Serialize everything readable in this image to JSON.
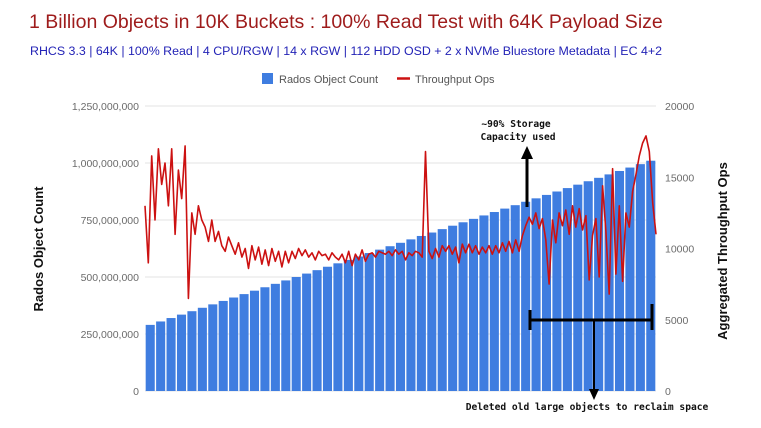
{
  "chart_data": {
    "type": "bar",
    "title": "1 Billion Objects in 10K Buckets : 100% Read Test with 64K Payload Size",
    "subtitle": "RHCS 3.3 | 64K | 100% Read | 4 CPU/RGW | 14 x RGW | 112 HDD OSD + 2 x NVMe Bluestore Metadata | EC 4+2",
    "ylabel": "Rados Object Count",
    "y2label": "Aggregated Throughput Ops",
    "ylim": [
      0,
      1250000000
    ],
    "y2lim": [
      0,
      20000
    ],
    "yticks": [
      "0",
      "250,000,000",
      "500,000,000",
      "750,000,000",
      "1,000,000,000",
      "1,250,000,000"
    ],
    "y2ticks": [
      "0",
      "5000",
      "10000",
      "15000",
      "20000"
    ],
    "legend_position": "top",
    "grid": true,
    "series": [
      {
        "name": "Rados Object Count",
        "axis": "left",
        "kind": "bar",
        "color": "#3f7de0",
        "values": [
          290000000,
          305000000,
          320000000,
          335000000,
          350000000,
          365000000,
          380000000,
          395000000,
          410000000,
          425000000,
          440000000,
          455000000,
          470000000,
          485000000,
          500000000,
          515000000,
          530000000,
          545000000,
          560000000,
          575000000,
          590000000,
          605000000,
          620000000,
          635000000,
          650000000,
          665000000,
          680000000,
          695000000,
          710000000,
          725000000,
          740000000,
          755000000,
          770000000,
          785000000,
          800000000,
          815000000,
          830000000,
          845000000,
          860000000,
          875000000,
          890000000,
          905000000,
          920000000,
          935000000,
          950000000,
          965000000,
          980000000,
          995000000,
          1010000000
        ]
      },
      {
        "name": "Throughput Ops",
        "axis": "right",
        "kind": "line",
        "color": "#cc1111",
        "values": [
          13000,
          9000,
          16500,
          12000,
          17000,
          14500,
          16000,
          13000,
          17000,
          11000,
          15500,
          13500,
          17200,
          6500,
          12500,
          11000,
          13000,
          12000,
          11500,
          10500,
          12000,
          10500,
          11200,
          10200,
          9800,
          10800,
          10200,
          9600,
          10400,
          9400,
          10000,
          8600,
          10200,
          9200,
          10100,
          8900,
          9900,
          8800,
          10000,
          9100,
          9800,
          8700,
          9800,
          9000,
          9800,
          9300,
          10000,
          9500,
          9900,
          9400,
          9700,
          9200,
          9800,
          9500,
          9600,
          9200,
          9700,
          9400,
          9200,
          9600,
          9000,
          9800,
          8800,
          9600,
          9200,
          9900,
          9100,
          9600,
          9700,
          9400,
          9800,
          9700,
          9600,
          9800,
          9500,
          9900,
          9600,
          9800,
          9200,
          9700,
          9500,
          9800,
          9700,
          9400,
          16800,
          9800,
          9300,
          10000,
          9400,
          10200,
          9800,
          10200,
          9600,
          10100,
          9000,
          10300,
          9700,
          10300,
          9700,
          10200,
          9600,
          10100,
          9700,
          10200,
          9600,
          10200,
          9700,
          10400,
          9800,
          10500,
          9700,
          10600,
          9800,
          10900,
          11600,
          12200,
          11700,
          12500,
          11400,
          12100,
          10600,
          7500,
          12000,
          10400,
          12500,
          11600,
          12700,
          11000,
          13000,
          11500,
          12800,
          11300,
          12300,
          7800,
          10900,
          12100,
          8000,
          14400,
          11200,
          6800,
          15600,
          8200,
          13000,
          7700,
          12500,
          11500,
          14000,
          15200,
          16500,
          17400,
          17900,
          16800,
          13200,
          11000
        ]
      }
    ],
    "annotations": [
      "~90% Storage",
      "Capacity used",
      "Deleted old large objects to reclaim space"
    ]
  }
}
